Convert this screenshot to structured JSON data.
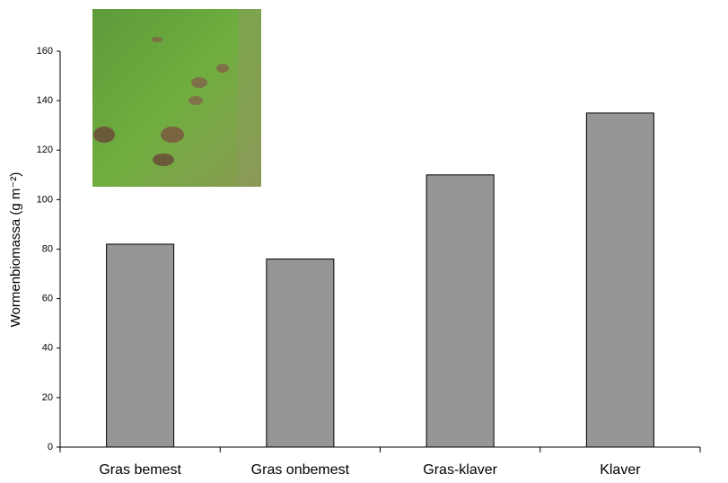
{
  "chart_data": {
    "type": "bar",
    "y_label": "Wormenbiomassa (g m⁻²)",
    "categories": [
      "Gras bemest",
      "Gras onbemest",
      "Gras-klaver",
      "Klaver"
    ],
    "values": [
      82,
      76,
      110,
      135
    ],
    "color": "#969696",
    "ylim": [
      0,
      160
    ],
    "yticks": [
      0,
      20,
      40,
      60,
      80,
      100,
      120,
      140,
      160
    ],
    "grid": false
  }
}
